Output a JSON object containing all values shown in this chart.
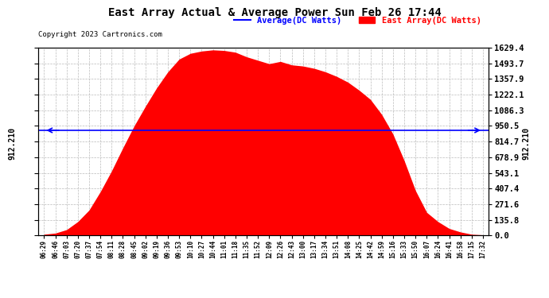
{
  "title": "East Array Actual & Average Power Sun Feb 26 17:44",
  "copyright": "Copyright 2023 Cartronics.com",
  "legend_avg": "Average(DC Watts)",
  "legend_east": "East Array(DC Watts)",
  "avg_value": 912.21,
  "ymax": 1629.4,
  "ymin": 0.0,
  "ytick_right": [
    0.0,
    135.8,
    271.6,
    407.4,
    543.1,
    678.9,
    814.7,
    950.5,
    1086.3,
    1222.1,
    1357.9,
    1493.7,
    1629.4
  ],
  "fill_color": "#FF0000",
  "avg_line_color": "#0000FF",
  "avg_legend_color": "#0000FF",
  "east_legend_color": "#FF0000",
  "background_color": "#FFFFFF",
  "grid_color": "#BBBBBB",
  "title_fontsize": 11,
  "xtick_labels": [
    "06:29",
    "06:46",
    "07:03",
    "07:20",
    "07:37",
    "07:54",
    "08:11",
    "08:28",
    "08:45",
    "09:02",
    "09:19",
    "09:36",
    "09:53",
    "10:10",
    "10:27",
    "10:44",
    "11:01",
    "11:18",
    "11:35",
    "11:52",
    "12:09",
    "12:26",
    "12:43",
    "13:00",
    "13:17",
    "13:34",
    "13:51",
    "14:08",
    "14:25",
    "14:42",
    "14:59",
    "15:16",
    "15:33",
    "15:50",
    "16:07",
    "16:24",
    "16:41",
    "16:58",
    "17:15",
    "17:32"
  ],
  "east_y": [
    10,
    20,
    50,
    120,
    220,
    380,
    560,
    760,
    950,
    1120,
    1280,
    1420,
    1530,
    1580,
    1600,
    1610,
    1605,
    1590,
    1550,
    1520,
    1490,
    1510,
    1480,
    1470,
    1450,
    1420,
    1380,
    1330,
    1260,
    1180,
    1050,
    880,
    650,
    390,
    200,
    120,
    60,
    30,
    10,
    5
  ]
}
